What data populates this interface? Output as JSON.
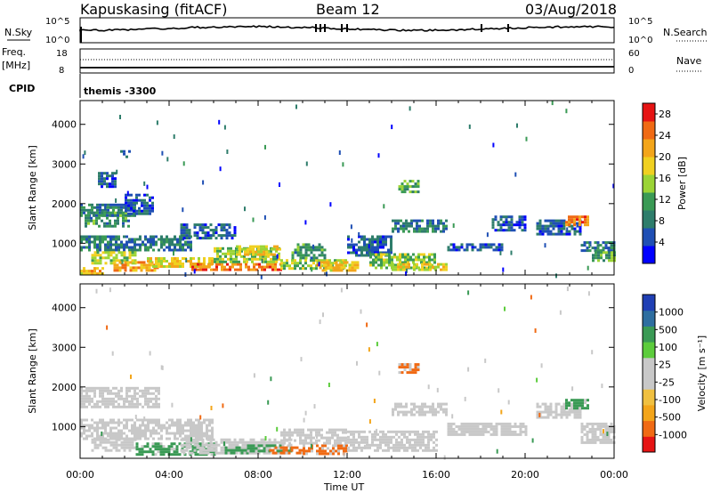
{
  "header": {
    "station": "Kapuskasing (fitACF)",
    "beam": "Beam 12",
    "date": "03/Aug/2018"
  },
  "top_panels": {
    "nsky_label": "N.Sky",
    "nsky_ticks": [
      "10^5",
      "10^0"
    ],
    "nsearch_label": "N.Search",
    "nsearch_ticks": [
      "10^5",
      "10^0"
    ],
    "freq_label": "Freq.",
    "freq_unit": "[MHz]",
    "freq_ticks": [
      "18",
      "8"
    ],
    "nave_label": "Nave",
    "nave_ticks": [
      "60",
      "0"
    ],
    "cpid_label": "CPID",
    "cpid_value": "themis -3300"
  },
  "colors": {
    "power_scale": [
      "#0000ff",
      "#1f4fb4",
      "#2e7d6b",
      "#3a9a55",
      "#9bd435",
      "#f0d020",
      "#f3a51a",
      "#f06a14",
      "#e61414"
    ],
    "velocity_scale": [
      "#e61414",
      "#f06a14",
      "#f3a51a",
      "#f0c040",
      "#c8c8c8",
      "#c8c8c8",
      "#5ccc3c",
      "#3a9a55",
      "#2e6ea0",
      "#1f3fb4"
    ],
    "ground_scatter": "#c8c8c8"
  },
  "chart_data": [
    {
      "type": "heatmap",
      "name": "power",
      "xlabel": "",
      "ylabel": "Slant Range [km]",
      "x_ticks": [
        "00:00",
        "04:00",
        "08:00",
        "12:00",
        "16:00",
        "20:00",
        "00:00"
      ],
      "y_ticks": [
        "1000",
        "2000",
        "3000",
        "4000"
      ],
      "ylim": [
        200,
        4600
      ],
      "xlim_hours": [
        0,
        24
      ],
      "colorbar_label": "Power [dB]",
      "colorbar_ticks": [
        "4",
        "8",
        "12",
        "16",
        "20",
        "24",
        "28"
      ],
      "colorbar_range": [
        0,
        30
      ],
      "patches": [
        {
          "t": [
            0.0,
            2.5
          ],
          "r": [
            1700,
            2000
          ],
          "v": 8
        },
        {
          "t": [
            0.2,
            2.2
          ],
          "r": [
            1400,
            1800
          ],
          "v": 10
        },
        {
          "t": [
            2.0,
            3.3
          ],
          "r": [
            1750,
            2250
          ],
          "v": 6
        },
        {
          "t": [
            0.8,
            1.6
          ],
          "r": [
            2400,
            2800
          ],
          "v": 5
        },
        {
          "t": [
            1.8,
            2.2
          ],
          "r": [
            3200,
            3350
          ],
          "v": 4
        },
        {
          "t": [
            0.0,
            5.0
          ],
          "r": [
            800,
            1200
          ],
          "v": 8
        },
        {
          "t": [
            0.5,
            2.5
          ],
          "r": [
            500,
            800
          ],
          "v": 16
        },
        {
          "t": [
            1.5,
            3.5
          ],
          "r": [
            300,
            550
          ],
          "v": 22
        },
        {
          "t": [
            3.0,
            6.0
          ],
          "r": [
            400,
            650
          ],
          "v": 18
        },
        {
          "t": [
            0.0,
            1.0
          ],
          "r": [
            250,
            400
          ],
          "v": 20
        },
        {
          "t": [
            5.0,
            9.0
          ],
          "r": [
            300,
            500
          ],
          "v": 24
        },
        {
          "t": [
            6.0,
            9.0
          ],
          "r": [
            550,
            900
          ],
          "v": 14
        },
        {
          "t": [
            7.0,
            9.0
          ],
          "r": [
            700,
            950
          ],
          "v": 18
        },
        {
          "t": [
            4.5,
            7.0
          ],
          "r": [
            1100,
            1500
          ],
          "v": 6
        },
        {
          "t": [
            9.0,
            12.0
          ],
          "r": [
            350,
            600
          ],
          "v": 14
        },
        {
          "t": [
            9.5,
            11.0
          ],
          "r": [
            650,
            1000
          ],
          "v": 10
        },
        {
          "t": [
            10.5,
            12.5
          ],
          "r": [
            300,
            550
          ],
          "v": 20
        },
        {
          "t": [
            12.0,
            14.0
          ],
          "r": [
            700,
            1200
          ],
          "v": 6
        },
        {
          "t": [
            13.0,
            16.0
          ],
          "r": [
            400,
            750
          ],
          "v": 14
        },
        {
          "t": [
            14.0,
            16.5
          ],
          "r": [
            300,
            500
          ],
          "v": 18
        },
        {
          "t": [
            14.3,
            15.2
          ],
          "r": [
            2300,
            2600
          ],
          "v": 12
        },
        {
          "t": [
            14.0,
            16.5
          ],
          "r": [
            1300,
            1600
          ],
          "v": 8
        },
        {
          "t": [
            16.5,
            19.0
          ],
          "r": [
            800,
            1000
          ],
          "v": 6
        },
        {
          "t": [
            18.5,
            20.0
          ],
          "r": [
            1300,
            1700
          ],
          "v": 6
        },
        {
          "t": [
            20.5,
            22.5
          ],
          "r": [
            1200,
            1600
          ],
          "v": 6
        },
        {
          "t": [
            21.8,
            22.8
          ],
          "r": [
            1450,
            1700
          ],
          "v": 24
        },
        {
          "t": [
            22.5,
            24.0
          ],
          "r": [
            800,
            1050
          ],
          "v": 8
        },
        {
          "t": [
            23.0,
            24.0
          ],
          "r": [
            550,
            800
          ],
          "v": 12
        }
      ]
    },
    {
      "type": "heatmap",
      "name": "velocity",
      "xlabel": "Time UT",
      "ylabel": "Slant Range [km]",
      "x_ticks": [
        "00:00",
        "04:00",
        "08:00",
        "12:00",
        "16:00",
        "20:00",
        "00:00"
      ],
      "y_ticks": [
        "1000",
        "2000",
        "3000",
        "4000"
      ],
      "ylim": [
        200,
        4600
      ],
      "xlim_hours": [
        0,
        24
      ],
      "colorbar_label": "Velocity [m s⁻¹]",
      "colorbar_ticks": [
        "1000",
        "500",
        "100",
        "25",
        "-25",
        "-100",
        "-500",
        "-1000"
      ],
      "patches": [
        {
          "t": [
            0.0,
            3.5
          ],
          "r": [
            1500,
            2000
          ],
          "v": "gs"
        },
        {
          "t": [
            0.0,
            6.0
          ],
          "r": [
            700,
            1200
          ],
          "v": "gs"
        },
        {
          "t": [
            0.5,
            2.5
          ],
          "r": [
            400,
            700
          ],
          "v": "gs"
        },
        {
          "t": [
            2.5,
            6.0
          ],
          "r": [
            300,
            600
          ],
          "v": 150
        },
        {
          "t": [
            4.5,
            9.5
          ],
          "r": [
            300,
            700
          ],
          "v": "gs"
        },
        {
          "t": [
            6.5,
            7.5
          ],
          "r": [
            350,
            500
          ],
          "v": 200
        },
        {
          "t": [
            7.5,
            9.5
          ],
          "r": [
            350,
            550
          ],
          "v": 300
        },
        {
          "t": [
            8.5,
            10.0
          ],
          "r": [
            350,
            500
          ],
          "v": -100
        },
        {
          "t": [
            10.0,
            12.0
          ],
          "r": [
            300,
            550
          ],
          "v": -150
        },
        {
          "t": [
            9.0,
            12.0
          ],
          "r": [
            600,
            950
          ],
          "v": "gs"
        },
        {
          "t": [
            12.0,
            16.0
          ],
          "r": [
            400,
            900
          ],
          "v": "gs"
        },
        {
          "t": [
            14.3,
            15.2
          ],
          "r": [
            2350,
            2600
          ],
          "v": -200
        },
        {
          "t": [
            14.0,
            16.5
          ],
          "r": [
            1300,
            1600
          ],
          "v": "gs"
        },
        {
          "t": [
            16.5,
            20.0
          ],
          "r": [
            800,
            1100
          ],
          "v": "gs"
        },
        {
          "t": [
            20.5,
            22.5
          ],
          "r": [
            1200,
            1600
          ],
          "v": "gs"
        },
        {
          "t": [
            21.8,
            22.8
          ],
          "r": [
            1450,
            1700
          ],
          "v": 150
        },
        {
          "t": [
            22.5,
            24.0
          ],
          "r": [
            600,
            1100
          ],
          "v": "gs"
        }
      ]
    }
  ]
}
